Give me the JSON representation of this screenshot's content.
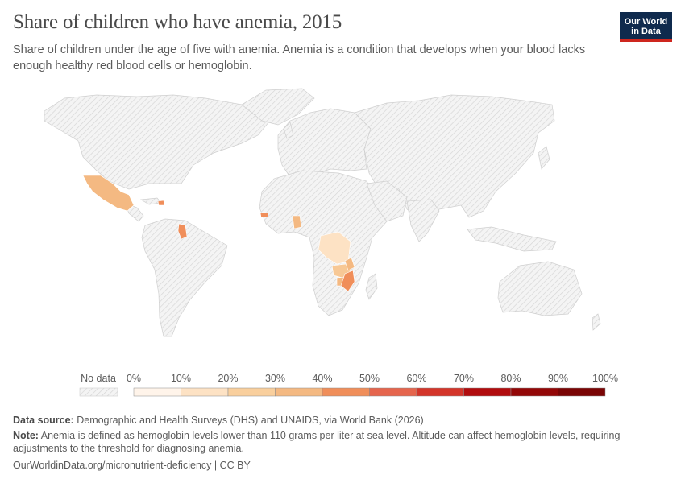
{
  "header": {
    "title": "Share of children who have anemia, 2015",
    "subtitle": "Share of children under the age of five with anemia. Anemia is a condition that develops when your blood lacks enough healthy red blood cells or hemoglobin."
  },
  "logo": {
    "line1": "Our World",
    "line2": "in Data",
    "bg": "#0f2a4d",
    "accent": "#ce261e"
  },
  "map": {
    "no_data_color": "#e9e9e9",
    "colored_regions": [
      {
        "name": "Mexico",
        "color": "#f4b982",
        "value_pct": 25
      },
      {
        "name": "Haiti",
        "color": "#f08e5a",
        "value_pct": 40
      },
      {
        "name": "Guyana",
        "color": "#f08e5a",
        "value_pct": 45
      },
      {
        "name": "Senegal",
        "color": "#f08e5a",
        "value_pct": 45
      },
      {
        "name": "Nigeria",
        "color": "#f4b982",
        "value_pct": 35
      },
      {
        "name": "DR Congo",
        "color": "#fde2c4",
        "value_pct": 15
      },
      {
        "name": "Malawi",
        "color": "#f4b982",
        "value_pct": 30
      },
      {
        "name": "Zambia",
        "color": "#f7c895",
        "value_pct": 25
      },
      {
        "name": "Zimbabwe",
        "color": "#f4b982",
        "value_pct": 30
      },
      {
        "name": "Mozambique",
        "color": "#f08e5a",
        "value_pct": 45
      }
    ]
  },
  "legend": {
    "no_data_label": "No data",
    "ticks": [
      "0%",
      "10%",
      "20%",
      "30%",
      "40%",
      "50%",
      "60%",
      "70%",
      "80%",
      "90%",
      "100%"
    ],
    "bins": [
      "#fff4ea",
      "#fde2c4",
      "#f9cf9d",
      "#f4b982",
      "#f08e5a",
      "#e5654d",
      "#d3352a",
      "#b10c0e",
      "#930707",
      "#7a0505"
    ]
  },
  "footer": {
    "source_label": "Data source:",
    "source_text": "Demographic and Health Surveys (DHS) and UNAIDS, via World Bank (2026)",
    "note_label": "Note:",
    "note_text": "Anemia is defined as hemoglobin levels lower than 110 grams per liter at sea level. Altitude can affect hemoglobin levels, requiring adjustments to the threshold for diagnosing anemia.",
    "url_text": "OurWorldinData.org/micronutrient-deficiency | CC BY"
  }
}
